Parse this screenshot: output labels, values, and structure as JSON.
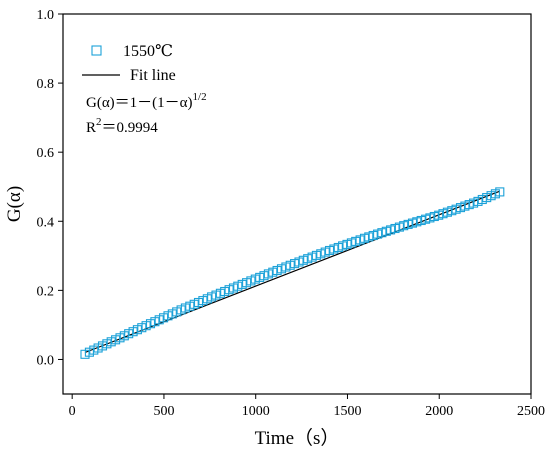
{
  "chart_data": {
    "type": "scatter",
    "xlabel": "Time（s）",
    "ylabel": "G(α)",
    "xlim": [
      -50,
      2500
    ],
    "ylim": [
      -0.1,
      1.0
    ],
    "xticks": [
      0,
      500,
      1000,
      1500,
      2000,
      2500
    ],
    "yticks": [
      0.0,
      0.2,
      0.4,
      0.6,
      0.8,
      1.0
    ],
    "xtick_labels": [
      "0",
      "500",
      "1000",
      "1500",
      "2000",
      "2500"
    ],
    "ytick_labels": [
      "0.0",
      "0.2",
      "0.4",
      "0.6",
      "0.8",
      "1.0"
    ],
    "grid": false,
    "legend_position": "top-left",
    "colors": {
      "marker": "#1ba1d8",
      "fit": "#000000"
    },
    "series": [
      {
        "name": "1550℃",
        "kind": "scatter",
        "marker": "open-square",
        "x": [
          70,
          200,
          400,
          600,
          800,
          1000,
          1200,
          1400,
          1600,
          1800,
          2000,
          2200,
          2330
        ],
        "y": [
          0.015,
          0.048,
          0.097,
          0.145,
          0.19,
          0.233,
          0.275,
          0.315,
          0.352,
          0.386,
          0.418,
          0.455,
          0.485
        ]
      },
      {
        "name": "Fit line",
        "kind": "line",
        "x": [
          70,
          2330
        ],
        "y": [
          0.02,
          0.487
        ]
      }
    ],
    "annotations": [
      {
        "id": "model",
        "base": "G(α)＝1－(1－α)",
        "sup": "1/2"
      },
      {
        "id": "r2",
        "base": "R",
        "sup": "2",
        "tail": "＝0.9994"
      }
    ]
  }
}
